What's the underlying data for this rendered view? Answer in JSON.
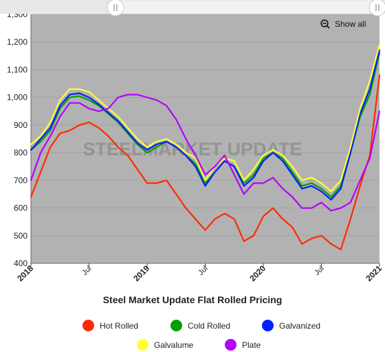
{
  "colors": {
    "plot_bg": "#b2b2b2",
    "hot_rolled": "#ff2a00",
    "cold_rolled": "#00a000",
    "galvanized": "#0020ff",
    "galvalume": "#ffff33",
    "plate": "#b400ff"
  },
  "watermark": "STEELMARKET UPDATE",
  "show_all_label": "Show all",
  "chart_data": {
    "type": "line",
    "title": "Steel Market Update Flat Rolled Pricing",
    "xlabel": "",
    "ylabel": "",
    "ylim": [
      400,
      1300
    ],
    "yticks": [
      "400",
      "500",
      "600",
      "700",
      "800",
      "900",
      "1,000",
      "1,100",
      "1,200",
      "1,300"
    ],
    "xlim": [
      "2018-01",
      "2021-01"
    ],
    "xticks": [
      {
        "label": "2018",
        "at": "2018-01",
        "major": true
      },
      {
        "label": "Jul",
        "at": "2018-07",
        "major": false
      },
      {
        "label": "2019",
        "at": "2019-01",
        "major": true
      },
      {
        "label": "Jul",
        "at": "2019-07",
        "major": false
      },
      {
        "label": "2020",
        "at": "2020-01",
        "major": true
      },
      {
        "label": "Jul",
        "at": "2020-07",
        "major": false
      },
      {
        "label": "2021",
        "at": "2021-01",
        "major": true
      }
    ],
    "grid": true,
    "legend_position": "bottom",
    "x": [
      "2018-01",
      "2018-02",
      "2018-03",
      "2018-04",
      "2018-05",
      "2018-06",
      "2018-07",
      "2018-08",
      "2018-09",
      "2018-10",
      "2018-11",
      "2018-12",
      "2019-01",
      "2019-02",
      "2019-03",
      "2019-04",
      "2019-05",
      "2019-06",
      "2019-07",
      "2019-08",
      "2019-09",
      "2019-10",
      "2019-11",
      "2019-12",
      "2020-01",
      "2020-02",
      "2020-03",
      "2020-04",
      "2020-05",
      "2020-06",
      "2020-07",
      "2020-08",
      "2020-09",
      "2020-10",
      "2020-11",
      "2020-12",
      "2021-01"
    ],
    "series": [
      {
        "name": "Hot Rolled",
        "color_key": "hot_rolled",
        "values": [
          640,
          730,
          820,
          870,
          880,
          900,
          910,
          890,
          860,
          820,
          790,
          740,
          690,
          690,
          700,
          650,
          600,
          560,
          520,
          560,
          580,
          560,
          480,
          500,
          570,
          600,
          560,
          530,
          470,
          490,
          500,
          470,
          450,
          560,
          680,
          790,
          1080
        ]
      },
      {
        "name": "Cold Rolled",
        "color_key": "cold_rolled",
        "values": [
          810,
          840,
          880,
          960,
          1000,
          1005,
          990,
          970,
          940,
          910,
          870,
          830,
          800,
          820,
          840,
          820,
          790,
          760,
          690,
          730,
          770,
          750,
          690,
          720,
          780,
          800,
          780,
          730,
          680,
          690,
          670,
          640,
          680,
          800,
          930,
          1010,
          1160
        ]
      },
      {
        "name": "Galvanized",
        "color_key": "galvanized",
        "values": [
          810,
          850,
          890,
          970,
          1010,
          1015,
          1000,
          975,
          945,
          915,
          875,
          835,
          810,
          830,
          840,
          820,
          790,
          750,
          680,
          730,
          770,
          750,
          680,
          710,
          770,
          800,
          770,
          720,
          670,
          680,
          660,
          630,
          670,
          800,
          940,
          1030,
          1170
        ]
      },
      {
        "name": "Galvalume",
        "color_key": "galvalume",
        "values": [
          830,
          860,
          910,
          990,
          1030,
          1030,
          1020,
          990,
          960,
          930,
          890,
          850,
          820,
          840,
          850,
          830,
          800,
          780,
          700,
          750,
          780,
          770,
          700,
          740,
          790,
          810,
          790,
          750,
          700,
          710,
          690,
          660,
          700,
          820,
          960,
          1060,
          1190
        ]
      },
      {
        "name": "Plate",
        "color_key": "plate",
        "values": [
          700,
          800,
          860,
          930,
          980,
          980,
          960,
          950,
          960,
          1000,
          1010,
          1010,
          1000,
          990,
          970,
          920,
          850,
          790,
          720,
          750,
          790,
          720,
          650,
          690,
          690,
          710,
          670,
          640,
          600,
          600,
          620,
          590,
          600,
          620,
          700,
          780,
          950
        ]
      }
    ]
  }
}
